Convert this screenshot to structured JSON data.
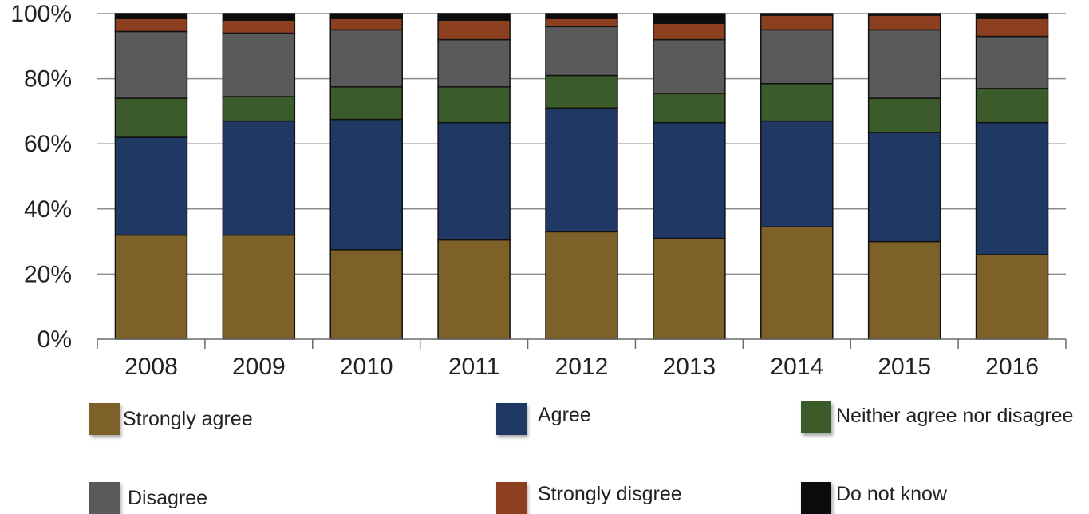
{
  "chart_data": {
    "type": "bar",
    "stacked": true,
    "percent": true,
    "title": "",
    "xlabel": "",
    "ylabel": "",
    "ylim": [
      0,
      100
    ],
    "yticks": [
      "0%",
      "20%",
      "40%",
      "60%",
      "80%",
      "100%"
    ],
    "grid": true,
    "legend_position": "bottom",
    "categories": [
      "2008",
      "2009",
      "2010",
      "2011",
      "2012",
      "2013",
      "2014",
      "2015",
      "2016"
    ],
    "series": [
      {
        "name": "Strongly agree",
        "color": "#7e6128",
        "values": [
          32,
          32,
          27.5,
          30.5,
          33,
          31,
          34.5,
          30,
          26
        ]
      },
      {
        "name": "Agree",
        "color": "#203864",
        "values": [
          30,
          35,
          40,
          36,
          38,
          35.5,
          32.5,
          33.5,
          40.5
        ]
      },
      {
        "name": "Neither agree nor disagree",
        "color": "#3b5b2a",
        "values": [
          12,
          7.5,
          10,
          11,
          10,
          9,
          11.5,
          10.5,
          10.5
        ]
      },
      {
        "name": "Disagree",
        "color": "#5a5a5a",
        "values": [
          20.5,
          19.5,
          17.5,
          14.5,
          15,
          16.5,
          16.5,
          21,
          16
        ]
      },
      {
        "name": "Strongly disgree",
        "color": "#8b3f1e",
        "values": [
          4,
          4,
          3.5,
          6,
          2.5,
          5,
          4.5,
          4.5,
          5.5
        ]
      },
      {
        "name": "Do not know",
        "color": "#0c0c0c",
        "values": [
          1.5,
          2,
          1.5,
          2,
          1.5,
          3,
          0.5,
          0.5,
          1.5
        ]
      }
    ]
  }
}
